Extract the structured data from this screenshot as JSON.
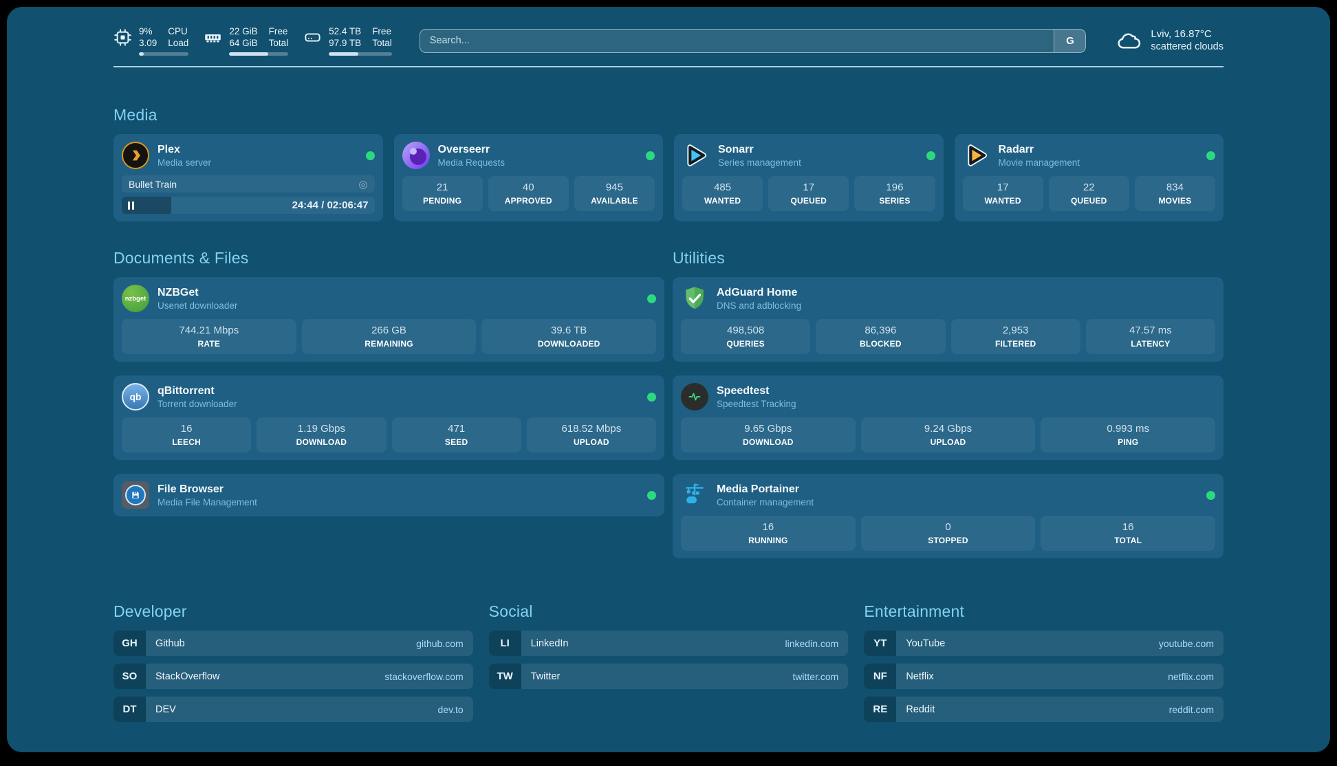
{
  "colors": {
    "page_bg": "#11506e",
    "card_bg": "#1f5f83",
    "accent": "#7fd2f3",
    "status_ok": "#2dd97e"
  },
  "topbar": {
    "cpu": {
      "values": [
        "9%",
        "3.09"
      ],
      "labels": [
        "CPU",
        "Load"
      ],
      "progress_pct": 9
    },
    "memory": {
      "values": [
        "22 GiB",
        "64 GiB"
      ],
      "labels": [
        "Free",
        "Total"
      ],
      "progress_pct": 66
    },
    "disk": {
      "values": [
        "52.4 TB",
        "97.9 TB"
      ],
      "labels": [
        "Free",
        "Total"
      ],
      "progress_pct": 47
    },
    "search": {
      "placeholder": "Search...",
      "button_label": "G"
    },
    "weather": {
      "line1": "Lviv, 16.87°C",
      "line2": "scattered clouds"
    }
  },
  "sections": {
    "media": {
      "title": "Media",
      "plex": {
        "title": "Plex",
        "subtitle": "Media server",
        "now_playing": "Bullet Train",
        "progress_pct": 19.5,
        "time": "24:44 / 02:06:47"
      },
      "overseerr": {
        "title": "Overseerr",
        "subtitle": "Media Requests",
        "stats": [
          {
            "value": "21",
            "label": "PENDING"
          },
          {
            "value": "40",
            "label": "APPROVED"
          },
          {
            "value": "945",
            "label": "AVAILABLE"
          }
        ]
      },
      "sonarr": {
        "title": "Sonarr",
        "subtitle": "Series management",
        "stats": [
          {
            "value": "485",
            "label": "WANTED"
          },
          {
            "value": "17",
            "label": "QUEUED"
          },
          {
            "value": "196",
            "label": "SERIES"
          }
        ]
      },
      "radarr": {
        "title": "Radarr",
        "subtitle": "Movie management",
        "stats": [
          {
            "value": "17",
            "label": "WANTED"
          },
          {
            "value": "22",
            "label": "QUEUED"
          },
          {
            "value": "834",
            "label": "MOVIES"
          }
        ]
      }
    },
    "documents": {
      "title": "Documents & Files",
      "nzbget": {
        "title": "NZBGet",
        "subtitle": "Usenet downloader",
        "icon_text": "nzbget",
        "stats": [
          {
            "value": "744.21 Mbps",
            "label": "RATE"
          },
          {
            "value": "266 GB",
            "label": "REMAINING"
          },
          {
            "value": "39.6 TB",
            "label": "DOWNLOADED"
          }
        ]
      },
      "qbittorrent": {
        "title": "qBittorrent",
        "subtitle": "Torrent downloader",
        "icon_text": "qb",
        "stats": [
          {
            "value": "16",
            "label": "LEECH"
          },
          {
            "value": "1.19 Gbps",
            "label": "DOWNLOAD"
          },
          {
            "value": "471",
            "label": "SEED"
          },
          {
            "value": "618.52 Mbps",
            "label": "UPLOAD"
          }
        ]
      },
      "filebrowser": {
        "title": "File Browser",
        "subtitle": "Media File Management"
      }
    },
    "utilities": {
      "title": "Utilities",
      "adguard": {
        "title": "AdGuard Home",
        "subtitle": "DNS and adblocking",
        "stats": [
          {
            "value": "498,508",
            "label": "QUERIES"
          },
          {
            "value": "86,396",
            "label": "BLOCKED"
          },
          {
            "value": "2,953",
            "label": "FILTERED"
          },
          {
            "value": "47.57 ms",
            "label": "LATENCY"
          }
        ]
      },
      "speedtest": {
        "title": "Speedtest",
        "subtitle": "Speedtest Tracking",
        "stats": [
          {
            "value": "9.65 Gbps",
            "label": "DOWNLOAD"
          },
          {
            "value": "9.24 Gbps",
            "label": "UPLOAD"
          },
          {
            "value": "0.993 ms",
            "label": "PING"
          }
        ]
      },
      "portainer": {
        "title": "Media Portainer",
        "subtitle": "Container management",
        "stats": [
          {
            "value": "16",
            "label": "RUNNING"
          },
          {
            "value": "0",
            "label": "STOPPED"
          },
          {
            "value": "16",
            "label": "TOTAL"
          }
        ]
      }
    },
    "developer": {
      "title": "Developer",
      "links": [
        {
          "abbr": "GH",
          "name": "Github",
          "url": "github.com"
        },
        {
          "abbr": "SO",
          "name": "StackOverflow",
          "url": "stackoverflow.com"
        },
        {
          "abbr": "DT",
          "name": "DEV",
          "url": "dev.to"
        }
      ]
    },
    "social": {
      "title": "Social",
      "links": [
        {
          "abbr": "LI",
          "name": "LinkedIn",
          "url": "linkedin.com"
        },
        {
          "abbr": "TW",
          "name": "Twitter",
          "url": "twitter.com"
        }
      ]
    },
    "entertainment": {
      "title": "Entertainment",
      "links": [
        {
          "abbr": "YT",
          "name": "YouTube",
          "url": "youtube.com"
        },
        {
          "abbr": "NF",
          "name": "Netflix",
          "url": "netflix.com"
        },
        {
          "abbr": "RE",
          "name": "Reddit",
          "url": "reddit.com"
        }
      ]
    }
  }
}
